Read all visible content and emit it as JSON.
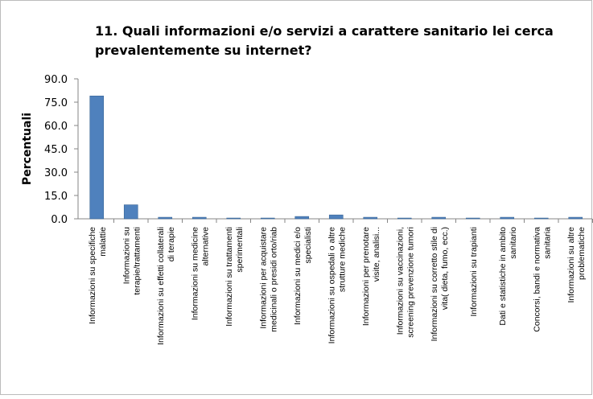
{
  "chart_data": {
    "type": "bar",
    "title": [
      "11. Quali informazioni e/o servizi a carattere sanitario lei cerca",
      "prevalentemente su internet?"
    ],
    "y_label": "Percentuali",
    "categories": [
      [
        "Informazioni su specifiche",
        "malattie"
      ],
      [
        "Informazioni su",
        "terapie/trattamenti"
      ],
      [
        "Informazioni su effetti collaterali",
        "di terapie"
      ],
      [
        "Informazioni su  medicine",
        "alternative"
      ],
      [
        "Informazioni su trattamenti",
        "sperimentali"
      ],
      [
        "Informazioni per acquistare",
        "medicinali o presidi orto/riab"
      ],
      [
        "Informazioni su medici e/o",
        "specialisti"
      ],
      [
        "Informazioni su ospedali o altre",
        "strutture mediche"
      ],
      [
        "Informazioni per prenotare",
        "visite, analisi..."
      ],
      [
        "Informazioni su vaccinazioni,",
        "screening prevenzione tumori"
      ],
      [
        "Informazioni su corretto stile di",
        "vita( dieta, fumo, ecc.)"
      ],
      [
        "Informazioni su trapianti"
      ],
      [
        "Dati e statistiche in ambito",
        "sanitario"
      ],
      [
        "Concorsi, bandi e normativa",
        "sanitaria"
      ],
      [
        "Informazioni su altre",
        "problematiche"
      ]
    ],
    "values": [
      79,
      9,
      1,
      1,
      0.5,
      0.5,
      1.5,
      2.5,
      1,
      0.5,
      1,
      0.5,
      1,
      0.5,
      1
    ],
    "color": "#4f81bd",
    "ylim": [
      0,
      90
    ],
    "yticks": [
      {
        "value": 0,
        "label": "0.0"
      },
      {
        "value": 15,
        "label": "15.0"
      },
      {
        "value": 30,
        "label": "30.0"
      },
      {
        "value": 45,
        "label": "45.0"
      },
      {
        "value": 60,
        "label": "60.0"
      },
      {
        "value": 75,
        "label": "75.0"
      },
      {
        "value": 90,
        "label": "90.0"
      }
    ],
    "grid": false
  }
}
